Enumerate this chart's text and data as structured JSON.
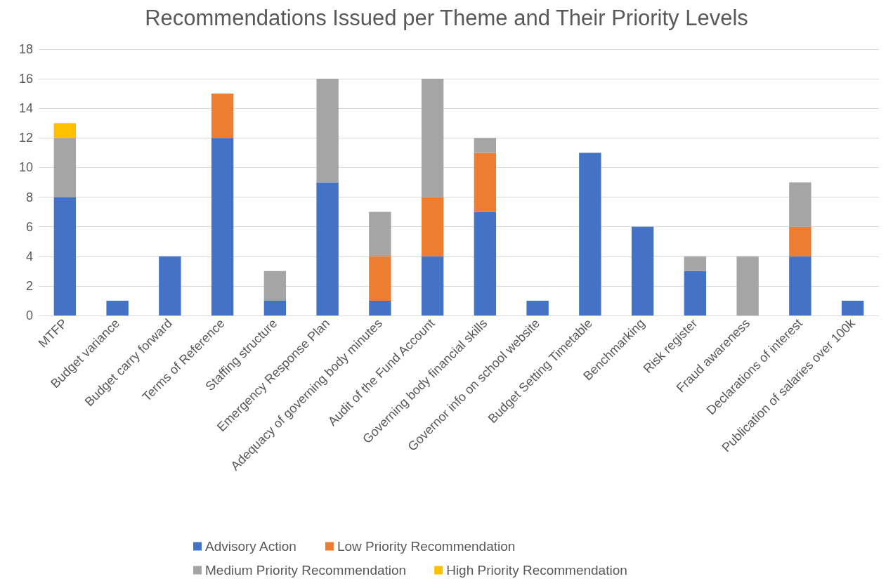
{
  "chart_data": {
    "type": "bar",
    "title": "Recommendations Issued per Theme and Their Priority Levels",
    "categories": [
      "MTFP",
      "Budget variance",
      "Budget carry forward",
      "Terms of Reference",
      "Staffing structure",
      "Emergency Response Plan",
      "Adequacy of governing body minutes",
      "Audit of the Fund Account",
      "Governing body financial skills",
      "Governor info on school website",
      "Budget Setting Timetable",
      "Benchmarking",
      "Risk register",
      "Fraud awareness",
      "Declarations of interest",
      "Publication of salaries over 100k"
    ],
    "series": [
      {
        "name": "Advisory Action",
        "color": "#4472c4",
        "values": [
          8,
          1,
          4,
          12,
          1,
          9,
          1,
          4,
          7,
          1,
          11,
          6,
          3,
          0,
          4,
          1
        ]
      },
      {
        "name": "Low Priority Recommendation",
        "color": "#ed7d31",
        "values": [
          0,
          0,
          0,
          3,
          0,
          0,
          3,
          4,
          4,
          0,
          0,
          0,
          0,
          0,
          2,
          0
        ]
      },
      {
        "name": "Medium Priority Recommendation",
        "color": "#a5a5a5",
        "values": [
          4,
          0,
          0,
          0,
          2,
          7,
          3,
          8,
          1,
          0,
          0,
          0,
          1,
          4,
          3,
          0
        ]
      },
      {
        "name": "High Priority Recommendation",
        "color": "#ffc000",
        "values": [
          1,
          0,
          0,
          0,
          0,
          0,
          0,
          0,
          0,
          0,
          0,
          0,
          0,
          0,
          0,
          0
        ]
      }
    ],
    "stacked": true,
    "ylim": [
      0,
      18
    ],
    "yticks": [
      0,
      2,
      4,
      6,
      8,
      10,
      12,
      14,
      16,
      18
    ],
    "grid": "y",
    "legend": "bottom"
  }
}
